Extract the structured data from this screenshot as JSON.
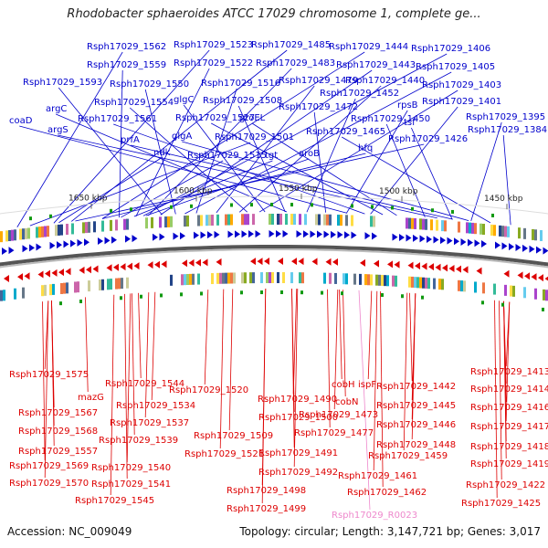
{
  "title": "Rhodobacter sphaeroides ATCC 17029 chromosome 1, complete ge...",
  "footer": {
    "accession": "Accession: NC_009049",
    "summary": "Topology: circular; Length: 3,147,721 bp; Genes: 3,017"
  },
  "colors": {
    "forward": "#0000cc",
    "reverse": "#dd0000",
    "rna": "#ee88cc",
    "backbone": "#888888",
    "gc": "#119911"
  },
  "scale": [
    "1650 kbp",
    "1600 kbp",
    "1550 kbp",
    "1500 kbp",
    "1450 kbp"
  ],
  "top_labels": [
    "Rsph17029_1562",
    "Rsph17029_1523",
    "Rsph17029_1485",
    "Rsph17029_1444",
    "Rsph17029_1406",
    "Rsph17029_1559",
    "Rsph17029_1522",
    "Rsph17029_1483",
    "Rsph17029_1443",
    "Rsph17029_1405",
    "Rsph17029_1593",
    "Rsph17029_1550",
    "Rsph17029_1516",
    "Rsph17029_1479",
    "Rsph17029_1440",
    "Rsph17029_1403",
    "Rsph17029_1554",
    "glgC",
    "Rsph17029_1508",
    "Rsph17029_1452",
    "argC",
    "Rsph17029_1472",
    "rpsB",
    "Rsph17029_1401",
    "coaD",
    "Rsph17029_1561",
    "Rsph17029_1527",
    "groEL",
    "Rsph17029_1450",
    "tsf",
    "Rsph17029_1395",
    "argS",
    "prfA",
    "glgA",
    "Rsph17029_1465",
    "Rsph17029_1384",
    "Rsph17029_1501",
    "Rsph17029_1426",
    "ndk",
    "hfq",
    "Rsph17029_1515",
    "tgt",
    "aroB"
  ],
  "bottom_labels": [
    "Rsph17029_1575",
    "Rsph17029_1544",
    "Rsph17029_1520",
    "Rsph17029_1442",
    "Rsph17029_1413",
    "mazG",
    "Rsph17029_1490",
    "cobH",
    "ispF",
    "Rsph17029_1414",
    "Rsph17029_1534",
    "cobN",
    "Rsph17029_1445",
    "Rsph17029_1567",
    "Rsph17029_1473",
    "Rsph17029_1416",
    "Rsph17029_1537",
    "Rsph17029_1500",
    "Rsph17029_1446",
    "Rsph17029_1568",
    "Rsph17029_1509",
    "Rsph17029_1477",
    "Rsph17029_1417",
    "Rsph17029_1539",
    "Rsph17029_1448",
    "Rsph17029_1557",
    "Rsph17029_1521",
    "Rsph17029_1491",
    "Rsph17029_1459",
    "Rsph17029_1418",
    "Rsph17029_1540",
    "Rsph17029_1569",
    "Rsph17029_1492",
    "Rsph17029_1419",
    "Rsph17029_1461",
    "Rsph17029_1541",
    "Rsph17029_1570",
    "Rsph17029_1422",
    "Rsph17029_1498",
    "Rsph17029_1462",
    "Rsph17029_1545",
    "Rsph17029_1425",
    "Rsph17029_1499"
  ],
  "rna_label": "Rsph17029_R0023"
}
